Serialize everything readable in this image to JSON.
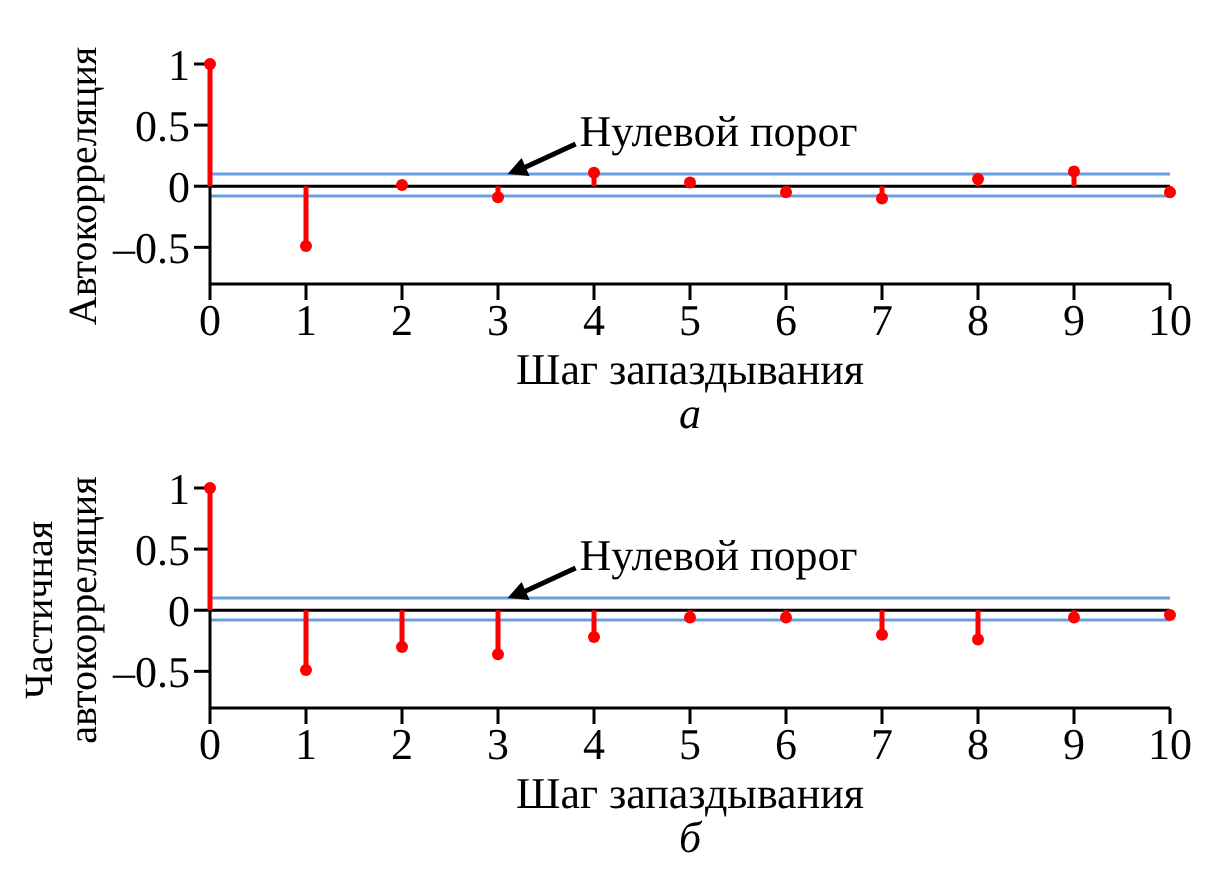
{
  "chart_data": [
    {
      "type": "lollipop",
      "subtitle": "а",
      "xlabel": "Шаг запаздывания",
      "ylabel": "Автокорреляция",
      "x": [
        0,
        1,
        2,
        3,
        4,
        5,
        6,
        7,
        8,
        9,
        10
      ],
      "series": [
        {
          "color": "#ff0000",
          "values": [
            1,
            -0.49,
            0.01,
            -0.09,
            0.11,
            0.03,
            -0.05,
            -0.1,
            0.06,
            0.12,
            -0.05
          ]
        }
      ],
      "marker": "circle",
      "xlim": [
        0,
        10
      ],
      "xticks": [
        0,
        1,
        2,
        3,
        4,
        5,
        6,
        7,
        8,
        9,
        10
      ],
      "ylim": [
        -0.8,
        1
      ],
      "yticks": [
        {
          "value": -0.5,
          "label": "–0.5"
        },
        0,
        0.5,
        1
      ],
      "ref_lines": [
        {
          "axis": "y",
          "value": 0,
          "color": "#000000"
        },
        {
          "axis": "y",
          "value": 0.1,
          "color": "#6a9fe0"
        },
        {
          "axis": "y",
          "value": -0.08,
          "color": "#6a9fe0"
        }
      ],
      "annotations": [
        {
          "text": "Нулевой порог",
          "x": 3.1,
          "y": 0.1
        }
      ]
    },
    {
      "type": "lollipop",
      "subtitle": "б",
      "xlabel": "Шаг запаздывания",
      "ylabel": "Частичная автокорреляция",
      "x": [
        0,
        1,
        2,
        3,
        4,
        5,
        6,
        7,
        8,
        9,
        10
      ],
      "series": [
        {
          "color": "#ff0000",
          "values": [
            1,
            -0.49,
            -0.3,
            -0.36,
            -0.22,
            -0.06,
            -0.06,
            -0.2,
            -0.24,
            -0.06,
            -0.04
          ]
        }
      ],
      "marker": "circle",
      "xlim": [
        0,
        10
      ],
      "xticks": [
        0,
        1,
        2,
        3,
        4,
        5,
        6,
        7,
        8,
        9,
        10
      ],
      "ylim": [
        -0.8,
        1
      ],
      "yticks": [
        {
          "value": -0.5,
          "label": "–0.5"
        },
        0,
        0.5,
        1
      ],
      "ref_lines": [
        {
          "axis": "y",
          "value": 0,
          "color": "#000000"
        },
        {
          "axis": "y",
          "value": 0.1,
          "color": "#6a9fe0"
        },
        {
          "axis": "y",
          "value": -0.08,
          "color": "#6a9fe0"
        }
      ],
      "annotations": [
        {
          "text": "Нулевой порог",
          "x": 3.1,
          "y": 0.1
        }
      ]
    }
  ]
}
